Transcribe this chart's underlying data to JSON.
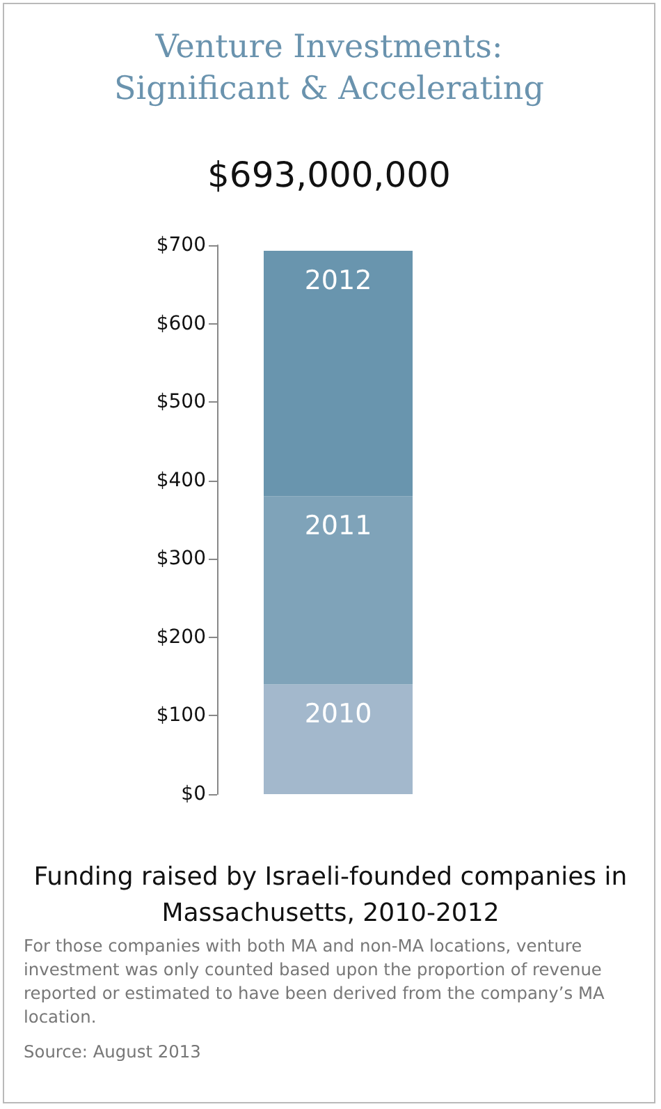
{
  "chart_data": {
    "type": "bar",
    "title": "Venture Investments: Significant & Accelerating",
    "subtitle": "$693,000,000",
    "xlabel": "Funding raised by Israeli-founded companies in Massachusetts, 2010-2012",
    "categories": [
      null
    ],
    "stacked": true,
    "series": [
      {
        "name": "2010",
        "color": "#a3b8cc",
        "values": [
          140
        ]
      },
      {
        "name": "2011",
        "color": "#7fa3b9",
        "values": [
          240
        ]
      },
      {
        "name": "2012",
        "color": "#6995ae",
        "values": [
          313
        ]
      }
    ],
    "ylim": [
      0,
      700
    ],
    "yticks": [
      {
        "value": 0,
        "label": "$0"
      },
      {
        "value": 100,
        "label": "$100"
      },
      {
        "value": 200,
        "label": "$200"
      },
      {
        "value": 300,
        "label": "$300"
      },
      {
        "value": 400,
        "label": "$400"
      },
      {
        "value": 500,
        "label": "$500"
      },
      {
        "value": 600,
        "label": "$600"
      },
      {
        "value": 700,
        "label": "$700"
      }
    ],
    "grid": false,
    "annotations": [
      "For those companies with both MA and non-MA locations, venture investment was only counted based upon the proportion of revenue reported or estimated to have been derived from the company’s MA location.",
      "Source: August 2013"
    ]
  }
}
